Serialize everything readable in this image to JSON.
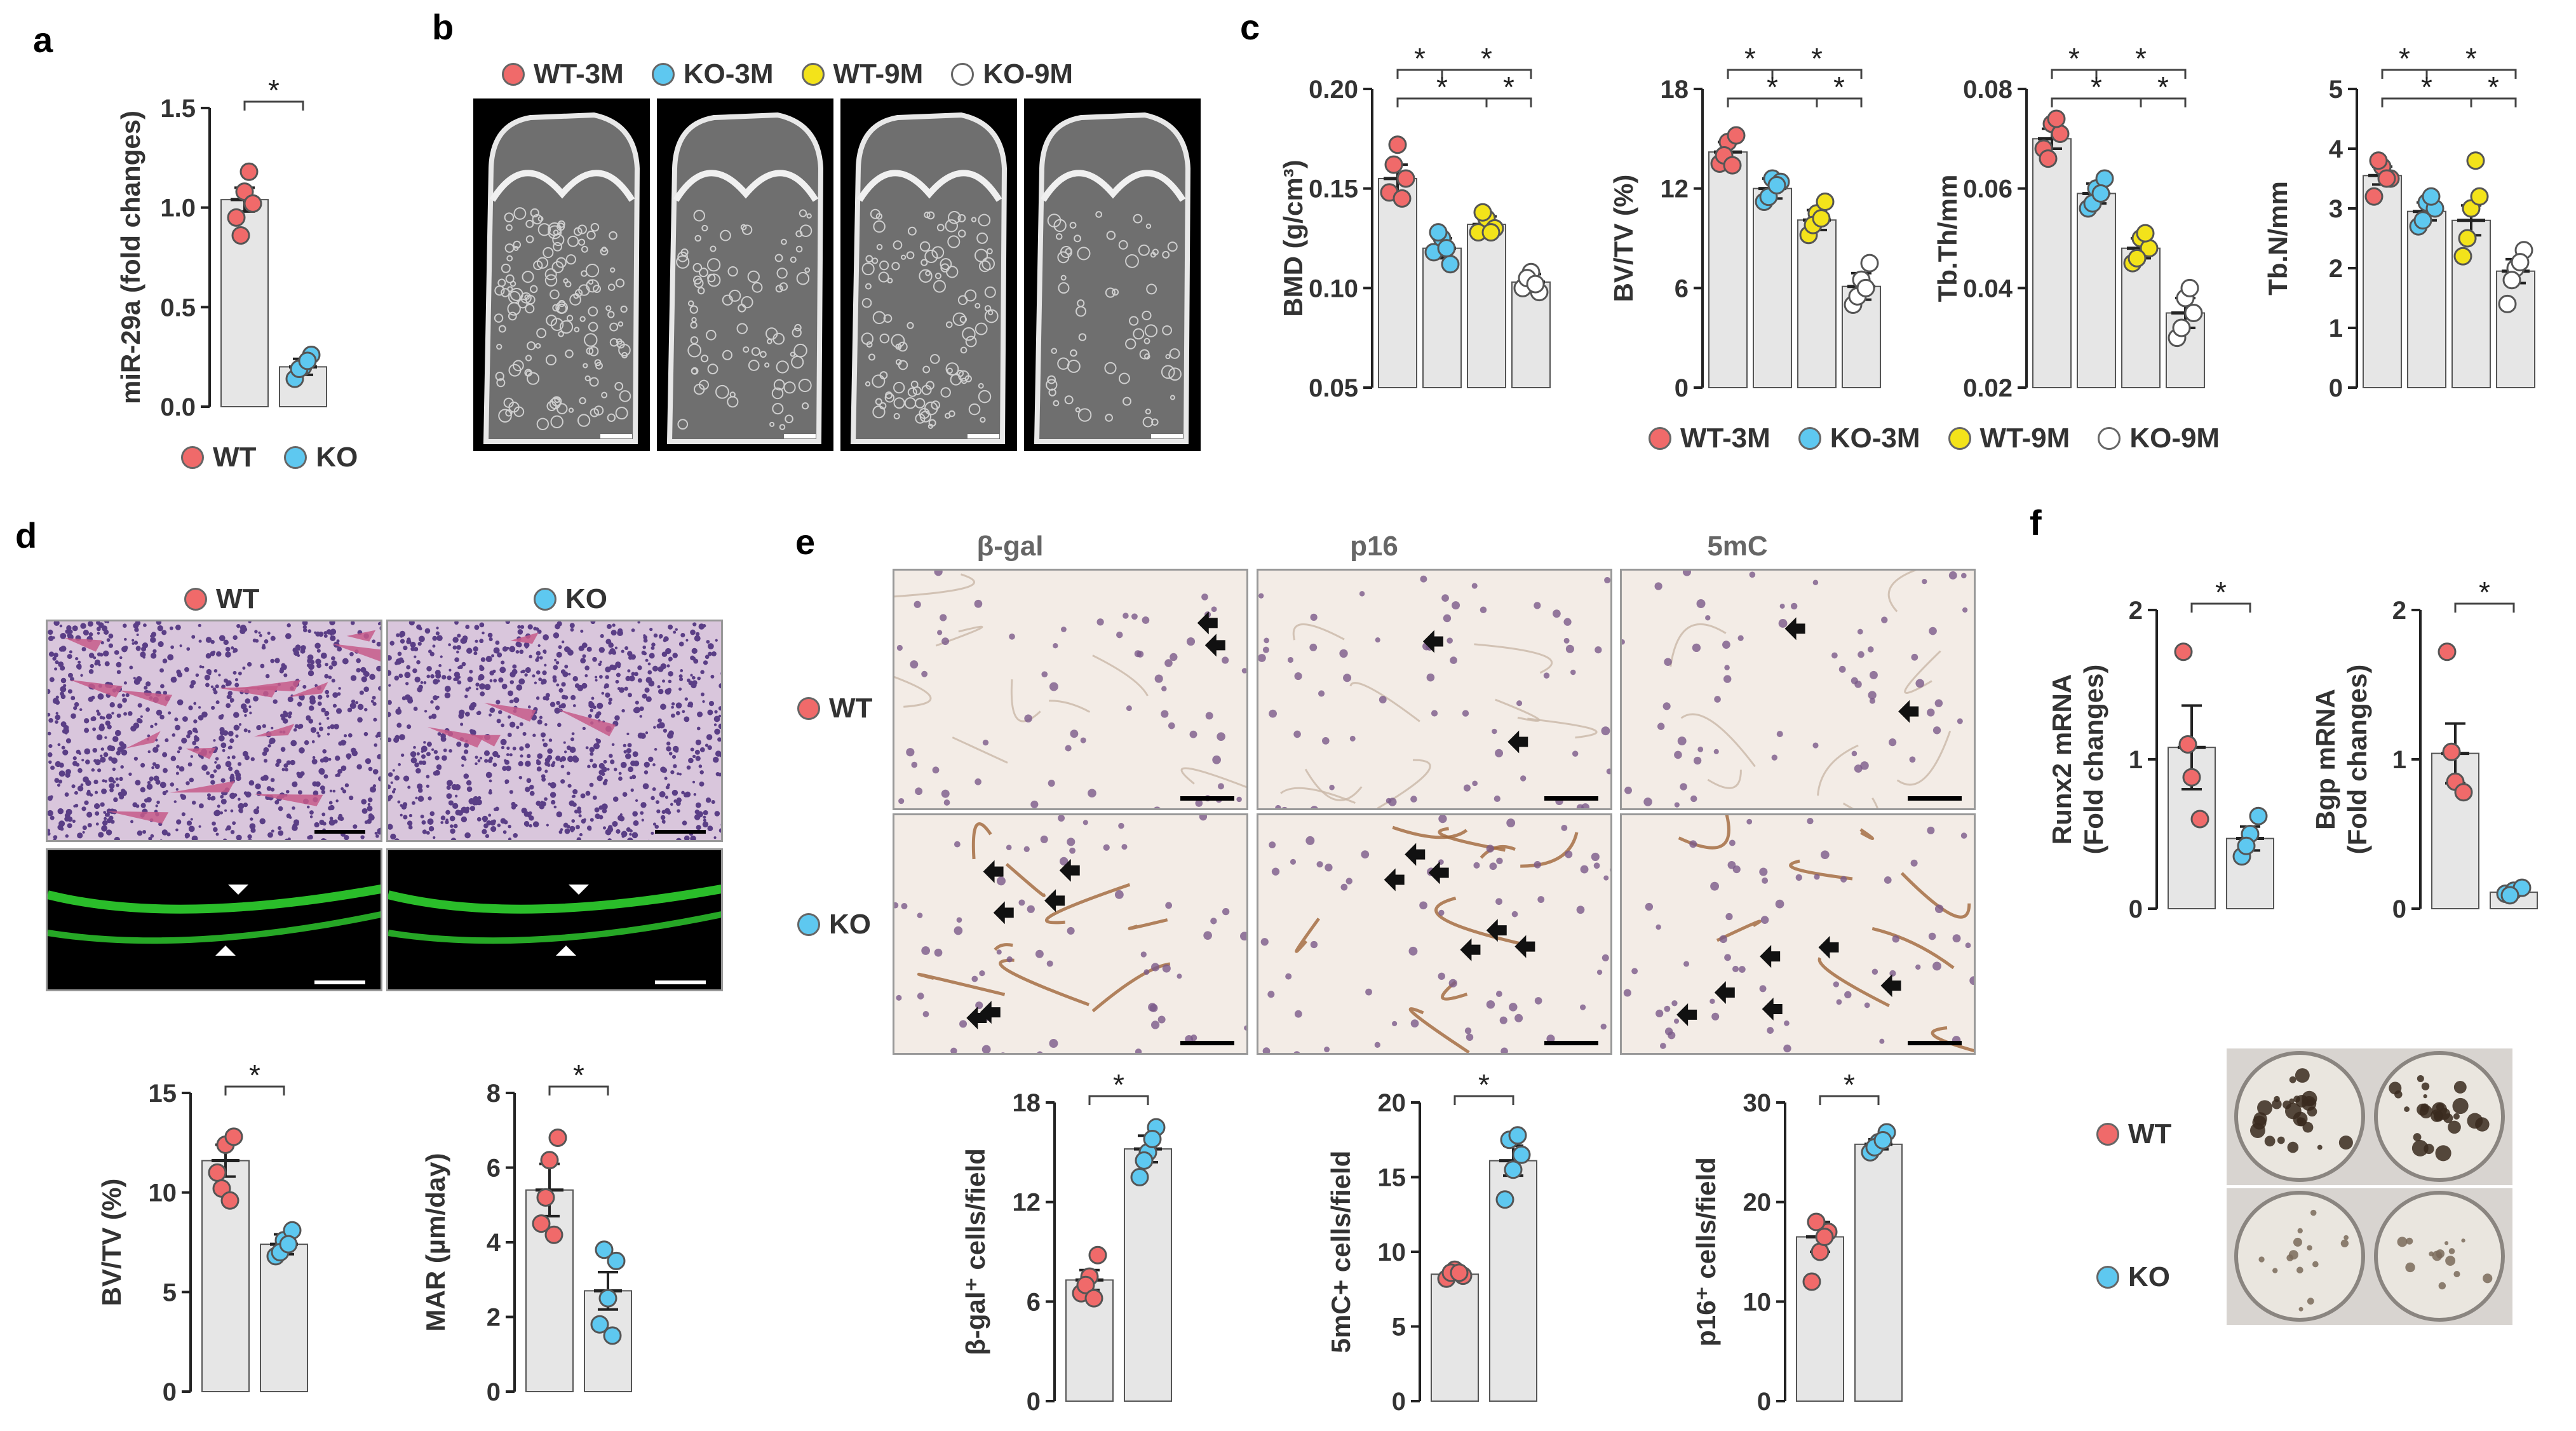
{
  "panels": {
    "a": "a",
    "b": "b",
    "c": "c",
    "d": "d",
    "e": "e",
    "f": "f"
  },
  "colors": {
    "wt3": "#f06a6a",
    "ko3": "#5ec8f0",
    "wt9": "#f3e31a",
    "ko9": "#ffffff",
    "bar": "#e6e6e6",
    "bar_stroke": "#555555",
    "he": "#c65a8a",
    "fluor": "#2fd12f",
    "ihc": "#a0663a"
  },
  "legend_wt_ko": {
    "wt": "WT",
    "ko": "KO"
  },
  "legend_groups": {
    "wt3": "WT-3M",
    "ko3": "KO-3M",
    "wt9": "WT-9M",
    "ko9": "KO-9M"
  },
  "panel_d_labels": {
    "wt": "WT",
    "ko": "KO"
  },
  "panel_e_columns": {
    "c1": "β-gal",
    "c2": "p16",
    "c3": "5mC"
  },
  "panel_e_rows": {
    "wt": "WT",
    "ko": "KO"
  },
  "panel_f_rows": {
    "wt": "WT",
    "ko": "KO"
  },
  "chart_data": [
    {
      "id": "a",
      "type": "bar",
      "ylabel": "miR-29a (fold changes)",
      "categories": [
        "WT",
        "KO"
      ],
      "values": [
        1.04,
        0.2
      ],
      "errors": [
        0.06,
        0.04
      ],
      "points": [
        [
          0.95,
          1.08,
          1.02,
          0.86,
          1.18
        ],
        [
          0.14,
          0.2,
          0.26,
          0.19,
          0.23
        ]
      ],
      "colors": [
        "wt3",
        "ko3"
      ],
      "ylim": [
        0,
        1.5
      ],
      "yticks": [
        "0.0",
        "0.5",
        "1.0",
        "1.5"
      ],
      "sig": [
        "*"
      ]
    },
    {
      "id": "c1",
      "type": "bar",
      "ylabel": "BMD (g/cm³)",
      "categories": [
        "WT-3M",
        "KO-3M",
        "WT-9M",
        "KO-9M"
      ],
      "values": [
        0.155,
        0.12,
        0.132,
        0.103
      ],
      "errors": [
        0.007,
        0.005,
        0.004,
        0.004
      ],
      "points": [
        [
          0.148,
          0.172,
          0.155,
          0.162,
          0.145
        ],
        [
          0.118,
          0.125,
          0.112,
          0.128,
          0.12
        ],
        [
          0.128,
          0.135,
          0.13,
          0.138,
          0.128
        ],
        [
          0.1,
          0.108,
          0.098,
          0.105,
          0.102
        ]
      ],
      "colors": [
        "wt3",
        "ko3",
        "wt9",
        "ko9"
      ],
      "ylim": [
        0.05,
        0.2
      ],
      "yticks": [
        "0.05",
        "0.10",
        "0.15",
        "0.20"
      ],
      "sig": [
        "*",
        "*",
        "*",
        "*"
      ]
    },
    {
      "id": "c2",
      "type": "bar",
      "ylabel": "BV/TV (%)",
      "categories": [
        "WT-3M",
        "KO-3M",
        "WT-9M",
        "KO-9M"
      ],
      "values": [
        14.2,
        12,
        10.1,
        6.1
      ],
      "errors": [
        0.6,
        0.6,
        0.6,
        0.8
      ],
      "points": [
        [
          13.5,
          14.8,
          15.2,
          14,
          13.4
        ],
        [
          11.2,
          12.6,
          12.4,
          11.5,
          12.2
        ],
        [
          9.2,
          10.5,
          11.2,
          9.8,
          10.2
        ],
        [
          5,
          6.5,
          7.5,
          5.5,
          6
        ]
      ],
      "colors": [
        "wt3",
        "ko3",
        "wt9",
        "ko9"
      ],
      "ylim": [
        0,
        18
      ],
      "yticks": [
        "0",
        "6",
        "12",
        "18"
      ],
      "sig": [
        "*",
        "*",
        "*",
        "*"
      ]
    },
    {
      "id": "c3",
      "type": "bar",
      "ylabel": "Tb.Th/mm",
      "categories": [
        "WT-3M",
        "KO-3M",
        "WT-9M",
        "KO-9M"
      ],
      "values": [
        0.07,
        0.059,
        0.048,
        0.035
      ],
      "errors": [
        0.002,
        0.002,
        0.002,
        0.003
      ],
      "points": [
        [
          0.068,
          0.073,
          0.071,
          0.066,
          0.074
        ],
        [
          0.056,
          0.06,
          0.062,
          0.057,
          0.059
        ],
        [
          0.045,
          0.05,
          0.048,
          0.046,
          0.051
        ],
        [
          0.03,
          0.038,
          0.035,
          0.032,
          0.04
        ]
      ],
      "colors": [
        "wt3",
        "ko3",
        "wt9",
        "ko9"
      ],
      "ylim": [
        0.02,
        0.08
      ],
      "yticks": [
        "0.02",
        "0.04",
        "0.06",
        "0.08"
      ],
      "sig": [
        "*",
        "*",
        "*",
        "*"
      ]
    },
    {
      "id": "c4",
      "type": "bar",
      "ylabel": "Tb.N/mm",
      "categories": [
        "WT-3M",
        "KO-3M",
        "WT-9M",
        "KO-9M"
      ],
      "values": [
        3.55,
        2.95,
        2.8,
        1.95
      ],
      "errors": [
        0.15,
        0.15,
        0.25,
        0.2
      ],
      "points": [
        [
          3.2,
          3.7,
          3.5,
          3.8,
          3.5
        ],
        [
          2.7,
          3.1,
          3,
          2.8,
          3.2
        ],
        [
          2.2,
          3,
          3.2,
          2.5,
          3.8
        ],
        [
          1.4,
          2,
          2.3,
          1.8,
          2.1
        ]
      ],
      "colors": [
        "wt3",
        "ko3",
        "wt9",
        "ko9"
      ],
      "ylim": [
        0,
        5
      ],
      "yticks": [
        "0",
        "1",
        "2",
        "3",
        "4",
        "5"
      ],
      "sig": [
        "*",
        "*",
        "*",
        "*"
      ]
    },
    {
      "id": "d1",
      "type": "bar",
      "ylabel": "BV/TV (%)",
      "categories": [
        "WT",
        "KO"
      ],
      "values": [
        11.6,
        7.4
      ],
      "errors": [
        0.8,
        0.5
      ],
      "points": [
        [
          11,
          12.4,
          12.8,
          10.2,
          9.6
        ],
        [
          6.8,
          7.6,
          8.1,
          7,
          7.4
        ]
      ],
      "colors": [
        "wt3",
        "ko3"
      ],
      "ylim": [
        0,
        15
      ],
      "yticks": [
        "0",
        "5",
        "10",
        "15"
      ],
      "sig": [
        "*"
      ]
    },
    {
      "id": "d2",
      "type": "bar",
      "ylabel": "MAR (µm/day)",
      "categories": [
        "WT",
        "KO"
      ],
      "values": [
        5.4,
        2.7
      ],
      "errors": [
        0.7,
        0.5
      ],
      "points": [
        [
          4.5,
          6.2,
          6.8,
          5.2,
          4.2
        ],
        [
          1.8,
          2.5,
          3.5,
          3.8,
          1.5
        ]
      ],
      "colors": [
        "wt3",
        "ko3"
      ],
      "ylim": [
        0,
        8
      ],
      "yticks": [
        "0",
        "2",
        "4",
        "6",
        "8"
      ],
      "sig": [
        "*"
      ]
    },
    {
      "id": "e1",
      "type": "bar",
      "ylabel": "β-gal⁺ cells/field",
      "categories": [
        "WT",
        "KO"
      ],
      "values": [
        7.3,
        15.2
      ],
      "errors": [
        0.6,
        0.8
      ],
      "points": [
        [
          6.5,
          7.5,
          8.8,
          7,
          6.2
        ],
        [
          13.5,
          15,
          16.5,
          14.5,
          15.8
        ]
      ],
      "colors": [
        "wt3",
        "ko3"
      ],
      "ylim": [
        0,
        18
      ],
      "yticks": [
        "0",
        "6",
        "12",
        "18"
      ],
      "sig": [
        "*"
      ]
    },
    {
      "id": "e2",
      "type": "bar",
      "ylabel": "5mC+ cells/field",
      "categories": [
        "WT",
        "KO"
      ],
      "values": [
        8.5,
        16.1
      ],
      "errors": [
        0.3,
        1
      ],
      "points": [
        [
          8.2,
          8.8,
          8.4,
          8.6,
          8.6
        ],
        [
          13.5,
          15.5,
          16.5,
          17.5,
          17.8
        ]
      ],
      "colors": [
        "wt3",
        "ko3"
      ],
      "ylim": [
        0,
        20
      ],
      "yticks": [
        "0",
        "5",
        "10",
        "15",
        "20"
      ],
      "sig": [
        "*"
      ]
    },
    {
      "id": "e3",
      "type": "bar",
      "ylabel": "p16⁺ cells/field",
      "categories": [
        "WT",
        "KO"
      ],
      "values": [
        16.5,
        25.8
      ],
      "errors": [
        1.5,
        0.5
      ],
      "points": [
        [
          12,
          15,
          17,
          18,
          16.5
        ],
        [
          25,
          26,
          27,
          25.5,
          26.2
        ]
      ],
      "colors": [
        "wt3",
        "ko3"
      ],
      "ylim": [
        0,
        30
      ],
      "yticks": [
        "0",
        "10",
        "20",
        "30"
      ],
      "sig": [
        "*"
      ]
    },
    {
      "id": "f1",
      "type": "bar",
      "ylabel": "Runx2 mRNA\n(Fold changes)",
      "categories": [
        "WT",
        "KO"
      ],
      "values": [
        1.08,
        0.47
      ],
      "errors": [
        0.28,
        0.08
      ],
      "points": [
        [
          1.72,
          0.88,
          0.6,
          1.1
        ],
        [
          0.35,
          0.5,
          0.62,
          0.42
        ]
      ],
      "colors": [
        "wt3",
        "ko3"
      ],
      "ylim": [
        0,
        2
      ],
      "yticks": [
        "0",
        "1",
        "2"
      ],
      "sig": [
        "*"
      ]
    },
    {
      "id": "f2",
      "type": "bar",
      "ylabel": "Bgp mRNA\n(Fold changes)",
      "categories": [
        "WT",
        "KO"
      ],
      "values": [
        1.04,
        0.11
      ],
      "errors": [
        0.2,
        0.02
      ],
      "points": [
        [
          1.72,
          0.85,
          0.78,
          1.05
        ],
        [
          0.1,
          0.12,
          0.14,
          0.09
        ]
      ],
      "colors": [
        "wt3",
        "ko3"
      ],
      "ylim": [
        0,
        2
      ],
      "yticks": [
        "0",
        "1",
        "2"
      ],
      "sig": [
        "*"
      ]
    }
  ]
}
